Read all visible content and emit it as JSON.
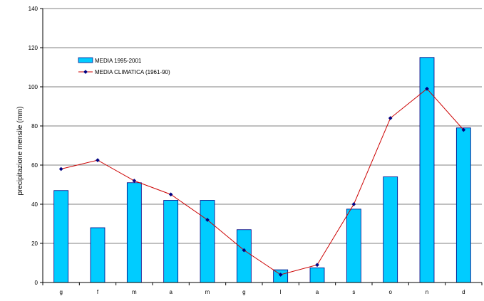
{
  "chart_data": {
    "type": "bar",
    "title": "",
    "xlabel": "",
    "ylabel": "precipitazione mensile (mm)",
    "ylim": [
      0,
      140
    ],
    "yticks": [
      0,
      20,
      40,
      60,
      80,
      100,
      120,
      140
    ],
    "grid": true,
    "legend_position": "top-left",
    "categories": [
      "g",
      "f",
      "m",
      "a",
      "m",
      "g",
      "l",
      "a",
      "s",
      "o",
      "n",
      "d"
    ],
    "series": [
      {
        "name": "MEDIA 1995-2001",
        "kind": "bar",
        "color": "#00CCFF",
        "values": [
          47,
          28,
          51,
          42,
          42,
          27,
          6.5,
          7.5,
          37.5,
          54,
          115,
          79
        ]
      },
      {
        "name": "MEDIA CLIMATICA (1961-90)",
        "kind": "line",
        "color": "#CC0000",
        "marker_color": "#000080",
        "values": [
          58,
          62.5,
          52,
          45,
          32,
          16.5,
          4,
          9,
          40,
          84,
          99,
          78
        ]
      }
    ]
  },
  "colors": {
    "bar_fill": "#00CCFF",
    "bar_stroke": "#000080",
    "line": "#CC0000",
    "marker": "#000080",
    "grid": "#808080",
    "axis": "#000000"
  }
}
